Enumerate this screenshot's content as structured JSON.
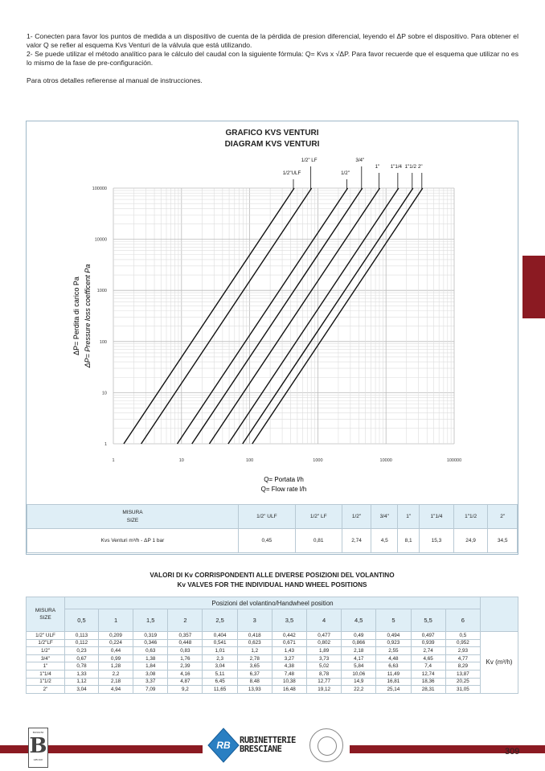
{
  "intro": {
    "p1": "1- Conecten para favor los puntos de medida a un dispositivo de cuenta de la pérdida de presion diferencial, leyendo el ΔP sobre el dispositivo. Para obtener el valor Q se refier al esquema Kvs Venturi de la válvula que está utilizando.",
    "p2": "2- Se puede utilizar el método analítico para le cálculo del caudal con la siguiente fórmula: Q= Kvs x √ΔP. Para favor recuerde que el esquema que utilizar no es lo mismo de la fase de pre-configuración.",
    "p3": "Para otros detalles refierense al manual de instrucciones."
  },
  "chart_data": {
    "type": "line",
    "title": "GRAFICO KVS VENTURI",
    "subtitle": "DIAGRAM KVS VENTURI",
    "xlabel": "Q= Portata l/h",
    "xlabel2": "Q= Flow rate l/h",
    "ylabel": "ΔP= Perdita di carico Pa",
    "ylabel2": "ΔP= Pressure loss coefficent Pa",
    "xscale": "log",
    "yscale": "log",
    "xlim": [
      1,
      100000
    ],
    "ylim": [
      1,
      100000
    ],
    "xticks": [
      "1",
      "10",
      "100",
      "1000",
      "10000",
      "100000"
    ],
    "yticks": [
      "1",
      "10",
      "100",
      "1000",
      "10000",
      "100000"
    ],
    "grid": true,
    "series": [
      {
        "name": "1/2\"ULF",
        "kvs": 0.45
      },
      {
        "name": "1/2\" LF",
        "kvs": 0.81
      },
      {
        "name": "1/2\"",
        "kvs": 2.74
      },
      {
        "name": "3/4\"",
        "kvs": 4.5
      },
      {
        "name": "1\"",
        "kvs": 8.1
      },
      {
        "name": "1\"1/4",
        "kvs": 15.3
      },
      {
        "name": "1\"1/2",
        "kvs": 24.9
      },
      {
        "name": "2\"",
        "kvs": 34.5
      }
    ]
  },
  "table1": {
    "header": "MISURA",
    "header2": "SIZE",
    "sizes": [
      "1/2\" ULF",
      "1/2\" LF",
      "1/2\"",
      "3/4\"",
      "1\"",
      "1\"1/4",
      "1\"1/2",
      "2\""
    ],
    "row_label": "Kvs Venturi m³/h - ΔP 1 bar",
    "values": [
      "0,45",
      "0,81",
      "2,74",
      "4,5",
      "8,1",
      "15,3",
      "24,9",
      "34,5"
    ]
  },
  "table2": {
    "title": "VALORI DI Kv CORRISPONDENTI ALLE DIVERSE POSIZIONI DEL VOLANTINO",
    "title2": "Kv VALVES FOR THE INDIVIDUAL HAND WHEEL POSITIONS",
    "header": "MISURA",
    "header2": "SIZE",
    "group_header": "Posizioni del volantino/Handwheel position",
    "positions": [
      "0,5",
      "1",
      "1,5",
      "2",
      "2,5",
      "3",
      "3,5",
      "4",
      "4,5",
      "5",
      "5,5",
      "6"
    ],
    "unit": "Kv (m³/h)",
    "rows": [
      {
        "size": "1/2\" ULF",
        "values": [
          "0,113",
          "0,209",
          "0,319",
          "0,357",
          "0,404",
          "0,418",
          "0,442",
          "0,477",
          "0,49",
          "0,494",
          "0,497",
          "0,5"
        ]
      },
      {
        "size": "1/2\"LF",
        "values": [
          "0,112",
          "0,224",
          "0,346",
          "0,448",
          "0,541",
          "0,623",
          "0,671",
          "0,802",
          "0,866",
          "0,923",
          "0,939",
          "0,952"
        ]
      },
      {
        "size": "1/2\"",
        "values": [
          "0,23",
          "0,44",
          "0,63",
          "0,83",
          "1,01",
          "1,2",
          "1,43",
          "1,89",
          "2,18",
          "2,55",
          "2,74",
          "2,93"
        ]
      },
      {
        "size": "3/4\"",
        "values": [
          "0,67",
          "0,99",
          "1,38",
          "1,76",
          "2,3",
          "2,78",
          "3,27",
          "3,73",
          "4,17",
          "4,48",
          "4,65",
          "4,77"
        ]
      },
      {
        "size": "1\"",
        "values": [
          "0,78",
          "1,28",
          "1,84",
          "2,39",
          "3,04",
          "3,65",
          "4,38",
          "5,02",
          "5,84",
          "6,63",
          "7,4",
          "8,29"
        ]
      },
      {
        "size": "1\"1/4",
        "values": [
          "1,33",
          "2,2",
          "3,08",
          "4,16",
          "5,11",
          "6,37",
          "7,48",
          "8,78",
          "10,06",
          "11,49",
          "12,74",
          "13,87"
        ]
      },
      {
        "size": "1\"1/2",
        "values": [
          "1,12",
          "2,18",
          "3,37",
          "4,87",
          "6,45",
          "8,48",
          "10,38",
          "12,77",
          "14,9",
          "16,81",
          "18,36",
          "20,25"
        ]
      },
      {
        "size": "2\"",
        "values": [
          "3,04",
          "4,94",
          "7,09",
          "9,2",
          "11,65",
          "13,93",
          "16,48",
          "19,12",
          "22,2",
          "25,14",
          "28,31",
          "31,05"
        ]
      }
    ]
  },
  "footer": {
    "logo_left": "BOSSINI B GROUP",
    "logo_center": "RUBINETTERIE BRESCIANE",
    "logo_center_line1": "RUBINETTERIE",
    "logo_center_line2": "BRESCIANE",
    "page_number": "309",
    "colors": {
      "brand_red": "#8b1a22",
      "table_header": "#dfeef6"
    }
  }
}
